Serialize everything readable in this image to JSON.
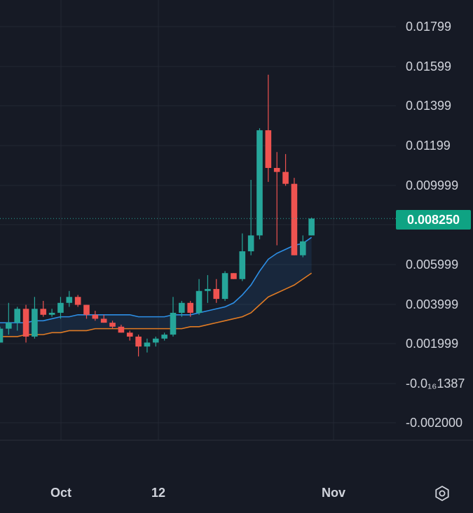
{
  "chart_data": {
    "type": "candlestick",
    "y_ticks": [
      "0.01799",
      "0.01599",
      "0.01399",
      "0.01199",
      "0.009999",
      "0.005999",
      "0.003999",
      "0.001999",
      "-0.0₁₆1387",
      "-0.002000"
    ],
    "x_ticks": [
      "Oct",
      "12",
      "Nov"
    ],
    "last_price": "0.008250",
    "ylim": [
      -0.0022,
      0.019
    ],
    "colors": {
      "up": "#26a69a",
      "down": "#ef5350",
      "ma_fast": "#2d8fe6",
      "ma_slow": "#e07b24",
      "background": "#161a25",
      "grid": "#232834",
      "text": "#d1d4dc",
      "badge": "#0fa383"
    },
    "candles": [
      {
        "o": 0.002,
        "h": 0.0028,
        "l": 0.002,
        "c": 0.0027
      },
      {
        "o": 0.0027,
        "h": 0.004,
        "l": 0.0024,
        "c": 0.003
      },
      {
        "o": 0.003,
        "h": 0.0038,
        "l": 0.0026,
        "c": 0.0037
      },
      {
        "o": 0.0037,
        "h": 0.0039,
        "l": 0.002,
        "c": 0.0023
      },
      {
        "o": 0.0023,
        "h": 0.0043,
        "l": 0.0022,
        "c": 0.0037
      },
      {
        "o": 0.0037,
        "h": 0.0041,
        "l": 0.0033,
        "c": 0.0034
      },
      {
        "o": 0.0034,
        "h": 0.0037,
        "l": 0.0033,
        "c": 0.0035
      },
      {
        "o": 0.0035,
        "h": 0.0043,
        "l": 0.0032,
        "c": 0.004
      },
      {
        "o": 0.004,
        "h": 0.0046,
        "l": 0.0038,
        "c": 0.0043
      },
      {
        "o": 0.0043,
        "h": 0.0044,
        "l": 0.0038,
        "c": 0.0039
      },
      {
        "o": 0.0039,
        "h": 0.0039,
        "l": 0.0032,
        "c": 0.0034
      },
      {
        "o": 0.0034,
        "h": 0.0036,
        "l": 0.0031,
        "c": 0.0032
      },
      {
        "o": 0.0032,
        "h": 0.0034,
        "l": 0.003,
        "c": 0.003
      },
      {
        "o": 0.003,
        "h": 0.0031,
        "l": 0.0027,
        "c": 0.0028
      },
      {
        "o": 0.0028,
        "h": 0.0029,
        "l": 0.0025,
        "c": 0.0025
      },
      {
        "o": 0.0025,
        "h": 0.0026,
        "l": 0.0021,
        "c": 0.0023
      },
      {
        "o": 0.0023,
        "h": 0.0024,
        "l": 0.0013,
        "c": 0.0018
      },
      {
        "o": 0.0018,
        "h": 0.0022,
        "l": 0.0015,
        "c": 0.002
      },
      {
        "o": 0.002,
        "h": 0.0023,
        "l": 0.0018,
        "c": 0.0022
      },
      {
        "o": 0.0022,
        "h": 0.0025,
        "l": 0.0021,
        "c": 0.0024
      },
      {
        "o": 0.0024,
        "h": 0.0043,
        "l": 0.0023,
        "c": 0.0035
      },
      {
        "o": 0.0035,
        "h": 0.0041,
        "l": 0.0033,
        "c": 0.004
      },
      {
        "o": 0.004,
        "h": 0.0041,
        "l": 0.0033,
        "c": 0.0035
      },
      {
        "o": 0.0035,
        "h": 0.0052,
        "l": 0.0034,
        "c": 0.0046
      },
      {
        "o": 0.0046,
        "h": 0.0054,
        "l": 0.004,
        "c": 0.0047
      },
      {
        "o": 0.0047,
        "h": 0.0052,
        "l": 0.004,
        "c": 0.0042
      },
      {
        "o": 0.0042,
        "h": 0.0056,
        "l": 0.0041,
        "c": 0.0055
      },
      {
        "o": 0.0055,
        "h": 0.0055,
        "l": 0.0052,
        "c": 0.0052
      },
      {
        "o": 0.0052,
        "h": 0.0075,
        "l": 0.0051,
        "c": 0.0066
      },
      {
        "o": 0.0066,
        "h": 0.0102,
        "l": 0.0064,
        "c": 0.0074
      },
      {
        "o": 0.0074,
        "h": 0.0128,
        "l": 0.0072,
        "c": 0.0127
      },
      {
        "o": 0.0127,
        "h": 0.0155,
        "l": 0.0101,
        "c": 0.0108
      },
      {
        "o": 0.0108,
        "h": 0.0116,
        "l": 0.0069,
        "c": 0.0106
      },
      {
        "o": 0.0106,
        "h": 0.0115,
        "l": 0.0099,
        "c": 0.01
      },
      {
        "o": 0.01,
        "h": 0.0103,
        "l": 0.0064,
        "c": 0.0064
      },
      {
        "o": 0.0064,
        "h": 0.0074,
        "l": 0.0063,
        "c": 0.0071
      },
      {
        "o": 0.0074,
        "h": 0.0083,
        "l": 0.0074,
        "c": 0.00825
      }
    ],
    "ma_fast": [
      0.003,
      0.003,
      0.003,
      0.003,
      0.0031,
      0.0031,
      0.0032,
      0.0033,
      0.0033,
      0.0034,
      0.0034,
      0.0034,
      0.0034,
      0.0034,
      0.0034,
      0.0034,
      0.0033,
      0.0033,
      0.0033,
      0.0033,
      0.0034,
      0.0034,
      0.0034,
      0.0035,
      0.0036,
      0.0037,
      0.0038,
      0.004,
      0.0044,
      0.0049,
      0.0056,
      0.0062,
      0.0065,
      0.0067,
      0.0069,
      0.007,
      0.0073
    ],
    "ma_slow": [
      0.0023,
      0.0023,
      0.0023,
      0.0024,
      0.0024,
      0.0024,
      0.0025,
      0.0025,
      0.0026,
      0.0026,
      0.0026,
      0.0027,
      0.0027,
      0.0027,
      0.0027,
      0.0027,
      0.0027,
      0.0027,
      0.0027,
      0.0027,
      0.0027,
      0.0027,
      0.0028,
      0.0028,
      0.0029,
      0.003,
      0.0031,
      0.0032,
      0.0033,
      0.0035,
      0.0039,
      0.0043,
      0.0045,
      0.0047,
      0.0049,
      0.0052,
      0.0055
    ]
  }
}
